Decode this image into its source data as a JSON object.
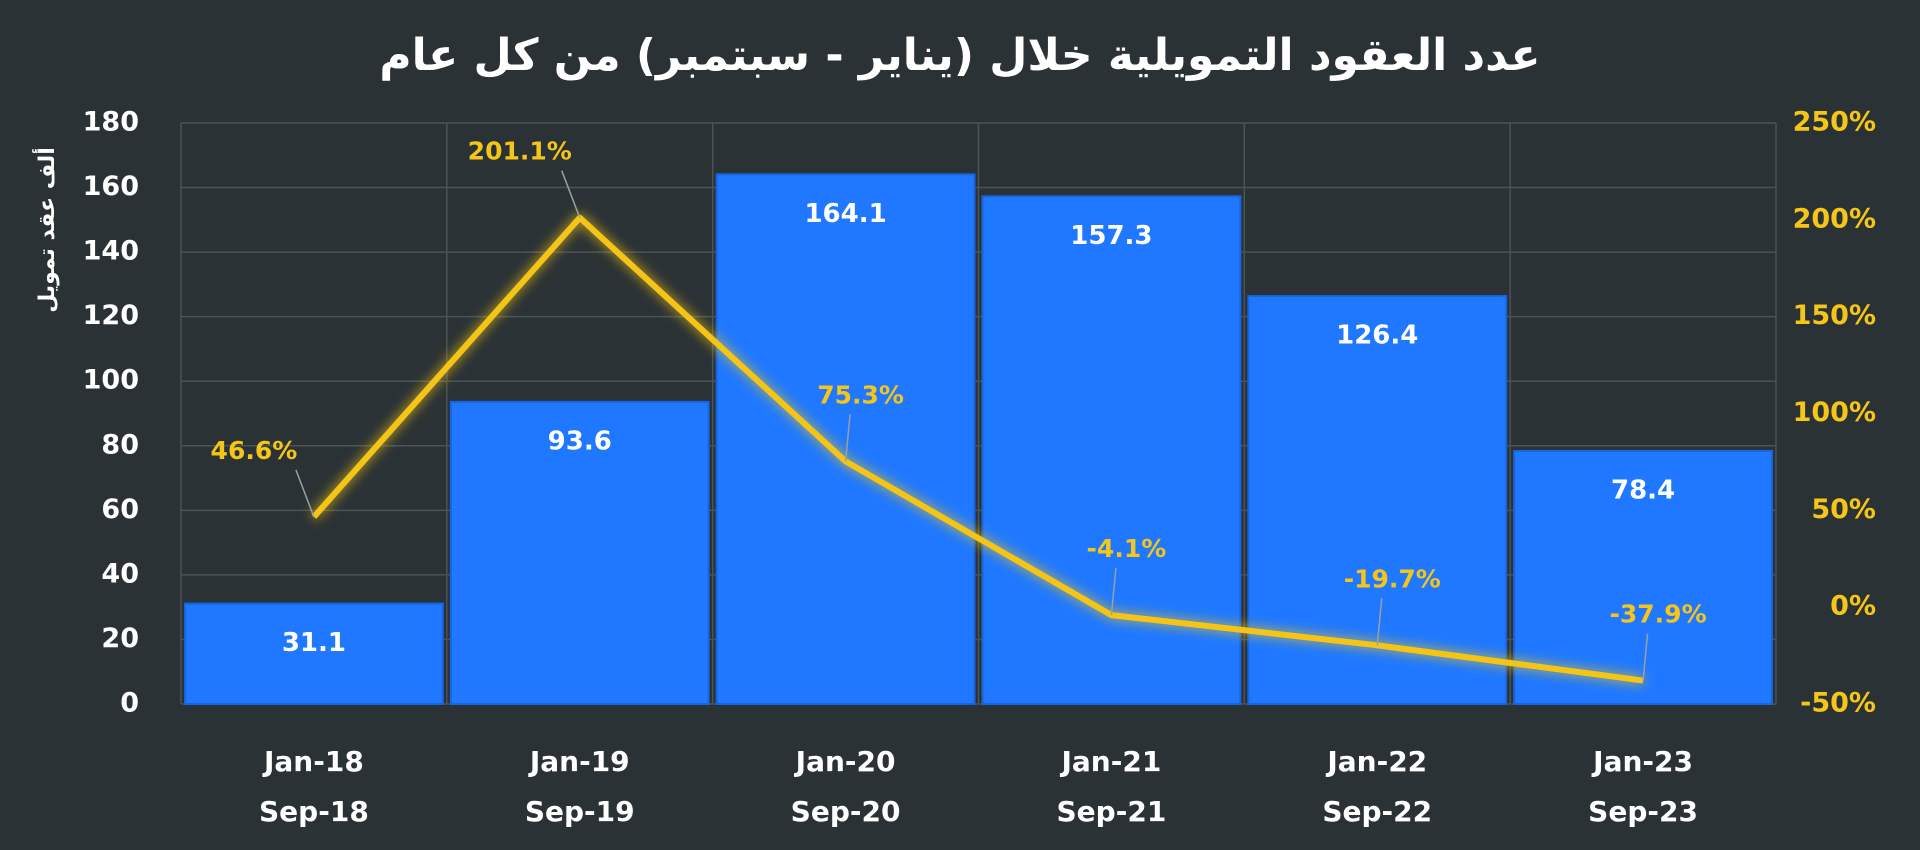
{
  "chart_data": {
    "type": "bar_line",
    "title": "عدد العقود التمويلية خلال (يناير - سبتمبر) من كل عام",
    "y_label": "ألف عقد تمويل",
    "categories": [
      [
        "Jan-18",
        "Sep-18"
      ],
      [
        "Jan-19",
        "Sep-19"
      ],
      [
        "Jan-20",
        "Sep-20"
      ],
      [
        "Jan-21",
        "Sep-21"
      ],
      [
        "Jan-22",
        "Sep-22"
      ],
      [
        "Jan-23",
        "Sep-23"
      ]
    ],
    "series": [
      {
        "type": "bar",
        "color": "#1f78ff",
        "values": [
          31.1,
          93.6,
          164.1,
          157.3,
          126.4,
          78.4
        ]
      },
      {
        "type": "line",
        "axis": "y2",
        "color": "#f5c518",
        "values": [
          46.6,
          201.1,
          75.3,
          -4.1,
          -19.7,
          -37.9
        ],
        "value_labels": [
          "46.6%",
          "201.1%",
          "75.3%",
          "-4.1%",
          "-19.7%",
          "-37.9%"
        ]
      }
    ],
    "ylim": [
      0,
      180
    ],
    "yticks": [
      0,
      20,
      40,
      60,
      80,
      100,
      120,
      140,
      160,
      180
    ],
    "y2lim": [
      -50,
      250
    ],
    "y2ticks": [
      {
        "value": -50,
        "label": "-50%"
      },
      {
        "value": 0,
        "label": "0%"
      },
      {
        "value": 50,
        "label": "50%"
      },
      {
        "value": 100,
        "label": "100%"
      },
      {
        "value": 150,
        "label": "150%"
      },
      {
        "value": 200,
        "label": "200%"
      },
      {
        "value": 250,
        "label": "250%"
      }
    ],
    "grid": true
  }
}
